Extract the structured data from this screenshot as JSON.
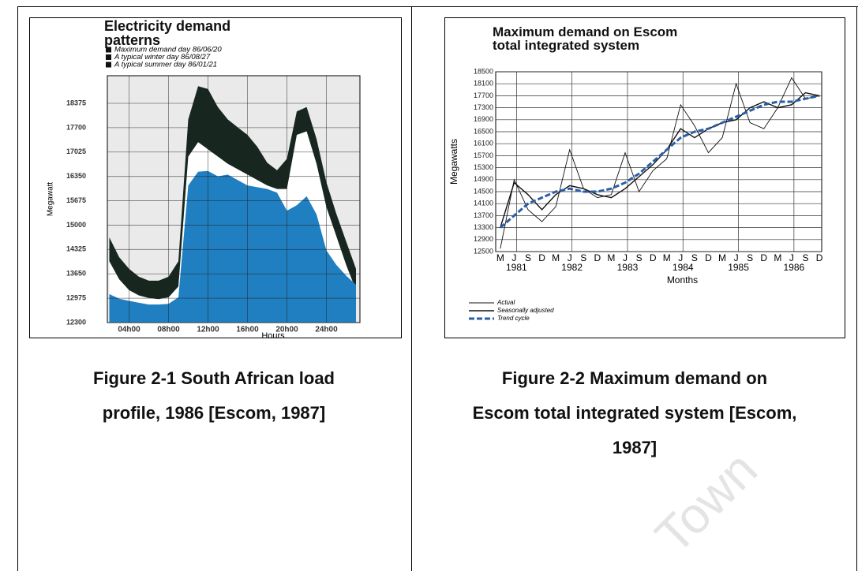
{
  "chart_data": [
    {
      "type": "area",
      "title": "Electricity demand patterns",
      "xlabel": "Hours",
      "ylabel": "Megawatt",
      "x": [
        2,
        3,
        4,
        5,
        6,
        7,
        8,
        9,
        10,
        11,
        12,
        13,
        14,
        15,
        16,
        17,
        18,
        19,
        20,
        21,
        22,
        23,
        24,
        25,
        26,
        27
      ],
      "xlim": [
        1.8,
        27.4
      ],
      "xticks": [
        {
          "value": 4,
          "label": "04h00"
        },
        {
          "value": 8,
          "label": "08h00"
        },
        {
          "value": 12,
          "label": "12h00"
        },
        {
          "value": 16,
          "label": "16h00"
        },
        {
          "value": 20,
          "label": "20h00"
        },
        {
          "value": 24,
          "label": "24h00"
        }
      ],
      "ylim": [
        12300,
        19140
      ],
      "yticks": [
        12300,
        12975,
        13650,
        14325,
        15000,
        15675,
        16350,
        17025,
        17700,
        18375
      ],
      "grid": true,
      "series": [
        {
          "name": "Maximum demand day 86/06/20",
          "color": "#17271f",
          "values": [
            14660,
            14110,
            13790,
            13570,
            13460,
            13460,
            13570,
            14000,
            17930,
            18850,
            18770,
            18270,
            17930,
            17710,
            17500,
            17170,
            16730,
            16520,
            16840,
            18150,
            18270,
            17390,
            16190,
            15320,
            14550,
            13790
          ]
        },
        {
          "name": "A typical winter day 86/08/27",
          "color": "#ffffff",
          "values": [
            14000,
            13500,
            13200,
            13050,
            12980,
            12950,
            13000,
            13300,
            16900,
            17300,
            17100,
            16900,
            16700,
            16550,
            16400,
            16250,
            16100,
            16000,
            16000,
            17500,
            17600,
            16700,
            15500,
            14700,
            13900,
            13200
          ]
        },
        {
          "name": "A typical summer day 86/01/21",
          "color": "#1f7fc0",
          "values": [
            13090,
            12960,
            12900,
            12850,
            12800,
            12800,
            12820,
            13000,
            16100,
            16480,
            16500,
            16350,
            16400,
            16250,
            16100,
            16050,
            16000,
            15900,
            15400,
            15550,
            15800,
            15300,
            14300,
            13900,
            13600,
            13350
          ]
        }
      ]
    },
    {
      "type": "line",
      "title": "Maximum demand on Escom total integrated system",
      "xlabel": "Months",
      "ylabel": "Megawatts",
      "x": [
        1981.208,
        1981.458,
        1981.708,
        1981.958,
        1982.208,
        1982.458,
        1982.708,
        1982.958,
        1983.208,
        1983.458,
        1983.708,
        1983.958,
        1984.208,
        1984.458,
        1984.708,
        1984.958,
        1985.208,
        1985.458,
        1985.708,
        1985.958,
        1986.208,
        1986.458,
        1986.708,
        1986.958
      ],
      "xlim": [
        1981.125,
        1987.0
      ],
      "xticks": [
        {
          "value": 1981.208,
          "label": "M"
        },
        {
          "value": 1981.458,
          "label": "J"
        },
        {
          "value": 1981.708,
          "label": "S"
        },
        {
          "value": 1981.958,
          "label": "D"
        },
        {
          "value": 1982.208,
          "label": "M"
        },
        {
          "value": 1982.458,
          "label": "J"
        },
        {
          "value": 1982.708,
          "label": "S"
        },
        {
          "value": 1982.958,
          "label": "D"
        },
        {
          "value": 1983.208,
          "label": "M"
        },
        {
          "value": 1983.458,
          "label": "J"
        },
        {
          "value": 1983.708,
          "label": "S"
        },
        {
          "value": 1983.958,
          "label": "D"
        },
        {
          "value": 1984.208,
          "label": "M"
        },
        {
          "value": 1984.458,
          "label": "J"
        },
        {
          "value": 1984.708,
          "label": "S"
        },
        {
          "value": 1984.958,
          "label": "D"
        },
        {
          "value": 1985.208,
          "label": "M"
        },
        {
          "value": 1985.458,
          "label": "J"
        },
        {
          "value": 1985.708,
          "label": "S"
        },
        {
          "value": 1985.958,
          "label": "D"
        },
        {
          "value": 1986.208,
          "label": "M"
        },
        {
          "value": 1986.458,
          "label": "J"
        },
        {
          "value": 1986.708,
          "label": "S"
        },
        {
          "value": 1986.958,
          "label": "D"
        }
      ],
      "year_ticks": [
        {
          "value": 1981.5,
          "label": "1981"
        },
        {
          "value": 1982.5,
          "label": "1982"
        },
        {
          "value": 1983.5,
          "label": "1983"
        },
        {
          "value": 1984.5,
          "label": "1984"
        },
        {
          "value": 1985.5,
          "label": "1985"
        },
        {
          "value": 1986.5,
          "label": "1986"
        }
      ],
      "ylim": [
        12500,
        18500
      ],
      "yticks": [
        12500,
        12900,
        13300,
        13700,
        14100,
        14500,
        14900,
        15300,
        15700,
        16100,
        16500,
        16900,
        17300,
        17700,
        18100,
        18500
      ],
      "grid": true,
      "series": [
        {
          "name": "Actual",
          "color": "#111111",
          "style": "thin",
          "values": [
            12600,
            14900,
            13900,
            13500,
            14000,
            15900,
            14600,
            14300,
            14400,
            15800,
            14500,
            15200,
            15600,
            17400,
            16700,
            15800,
            16300,
            18100,
            16800,
            16600,
            17300,
            18300,
            17600,
            17700
          ]
        },
        {
          "name": "Seasonally adjusted",
          "color": "#111111",
          "style": "solid",
          "values": [
            13300,
            14800,
            14400,
            13900,
            14400,
            14700,
            14600,
            14400,
            14300,
            14600,
            15000,
            15400,
            15900,
            16600,
            16300,
            16600,
            16800,
            16900,
            17300,
            17500,
            17300,
            17400,
            17800,
            17700
          ]
        },
        {
          "name": "Trend cycle",
          "color": "#2a5ea8",
          "style": "dashed",
          "values": [
            13300,
            13700,
            14100,
            14300,
            14500,
            14600,
            14500,
            14500,
            14600,
            14800,
            15100,
            15500,
            15900,
            16300,
            16500,
            16600,
            16800,
            17000,
            17200,
            17400,
            17500,
            17500,
            17600,
            17700
          ]
        }
      ]
    }
  ],
  "captions": [
    {
      "lines": [
        "Figure 2-1 South African load",
        "profile, 1986 [Escom, 1987]"
      ]
    },
    {
      "lines": [
        "Figure 2-2 Maximum demand on",
        "Escom total integrated system [Escom,",
        "1987]"
      ]
    }
  ],
  "watermark": "Town"
}
